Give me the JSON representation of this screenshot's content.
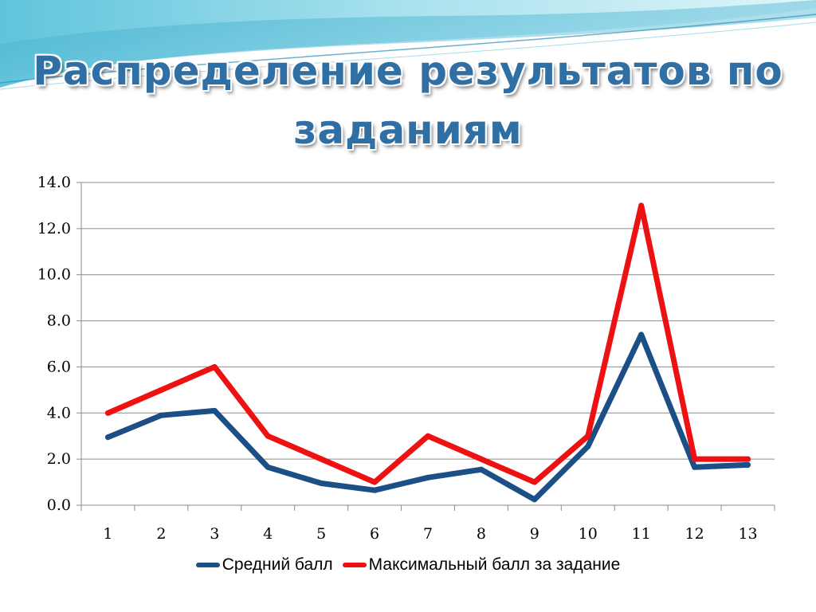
{
  "slide": {
    "title_line1": "Распределение результатов по",
    "title_line2": "заданиям"
  },
  "colors": {
    "series_average": "#1b4f86",
    "series_max": "#ee1111",
    "title": "#2f6fa3"
  },
  "chart_data": {
    "type": "line",
    "title": "Распределение результатов по заданиям",
    "xlabel": "",
    "ylabel": "",
    "categories": [
      "1",
      "2",
      "3",
      "4",
      "5",
      "6",
      "7",
      "8",
      "9",
      "10",
      "11",
      "12",
      "13"
    ],
    "ylim": [
      0,
      14
    ],
    "y_ticks": [
      "0.0",
      "2.0",
      "4.0",
      "6.0",
      "8.0",
      "10.0",
      "12.0",
      "14.0"
    ],
    "grid": true,
    "legend_position": "bottom",
    "series": [
      {
        "name": "Средний балл",
        "color": "#1b4f86",
        "values": [
          2.95,
          3.9,
          4.1,
          1.65,
          0.95,
          0.65,
          1.2,
          1.55,
          0.25,
          2.55,
          7.4,
          1.65,
          1.75
        ]
      },
      {
        "name": "Максимальный балл за задание",
        "color": "#ee1111",
        "values": [
          4,
          5,
          6,
          3,
          2,
          1,
          3,
          2,
          1,
          3,
          13,
          2,
          2
        ]
      }
    ]
  }
}
